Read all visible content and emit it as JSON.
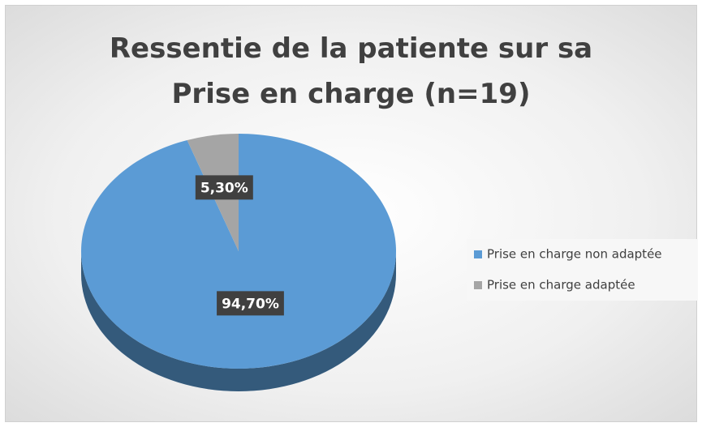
{
  "chart_data": {
    "type": "pie",
    "title": "Ressentie de la patiente sur sa Prise en charge (n=19)",
    "categories": [
      "Prise en charge non adaptée",
      "Prise en charge adaptée"
    ],
    "values": [
      94.7,
      5.3
    ],
    "value_labels": [
      "94,70%",
      "5,30%"
    ],
    "colors": [
      "#5b9bd5",
      "#a5a5a5"
    ],
    "legend": "right"
  }
}
